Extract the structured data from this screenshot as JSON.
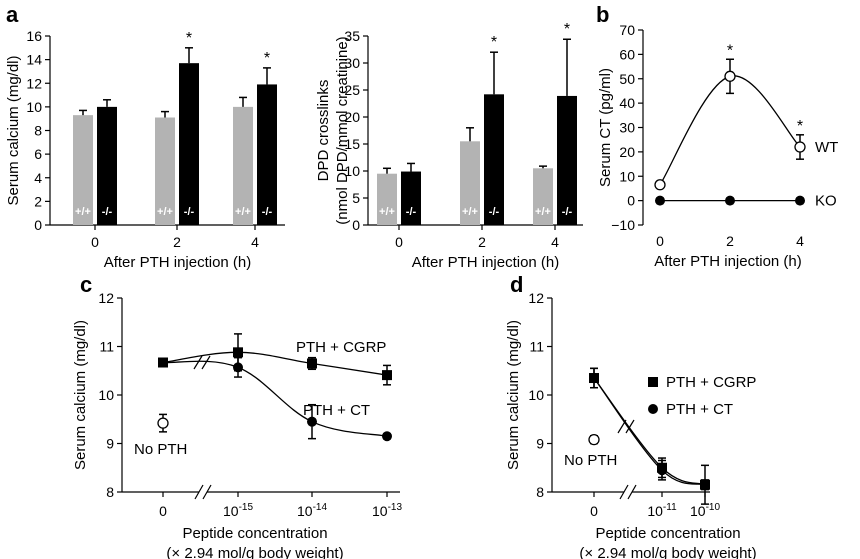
{
  "chart_data": [
    {
      "panel": "a",
      "type": "bar",
      "categories": [
        "0",
        "2",
        "4"
      ],
      "xlabel": "After PTH injection (h)",
      "ylabel": "Serum calcium (mg/dl)",
      "ylim": [
        0,
        16
      ],
      "yticks": [
        0,
        2,
        4,
        6,
        8,
        10,
        12,
        14,
        16
      ],
      "series": [
        {
          "name": "+/+",
          "label": "+/+",
          "color": "#b3b3b3",
          "values": [
            9.3,
            9.1,
            10.0
          ],
          "errors": [
            0.4,
            0.5,
            0.8
          ]
        },
        {
          "name": "-/-",
          "label": "-/-",
          "color": "#000000",
          "values": [
            10.0,
            13.7,
            11.9
          ],
          "errors": [
            0.6,
            1.3,
            1.4
          ]
        }
      ],
      "significance": [
        {
          "series": 1,
          "category": 1,
          "mark": "*"
        },
        {
          "series": 1,
          "category": 2,
          "mark": "*"
        }
      ]
    },
    {
      "panel": "a2",
      "type": "bar",
      "categories": [
        "0",
        "2",
        "4"
      ],
      "xlabel": "After PTH injection (h)",
      "ylabel_lines": [
        "DPD crosslinks",
        "(nmol DPD/mmol creatinine)"
      ],
      "ylim": [
        0,
        35
      ],
      "yticks": [
        0,
        5,
        10,
        15,
        20,
        25,
        30,
        35
      ],
      "series": [
        {
          "name": "+/+",
          "label": "+/+",
          "color": "#b3b3b3",
          "values": [
            9.5,
            15.5,
            10.5
          ],
          "errors": [
            1.0,
            2.5,
            0.4
          ]
        },
        {
          "name": "-/-",
          "label": "-/-",
          "color": "#000000",
          "values": [
            9.9,
            24.2,
            23.9
          ],
          "errors": [
            1.5,
            7.8,
            10.5
          ]
        }
      ],
      "significance": [
        {
          "series": 1,
          "category": 1,
          "mark": "*"
        },
        {
          "series": 1,
          "category": 2,
          "mark": "*"
        }
      ]
    },
    {
      "panel": "b",
      "type": "line",
      "x": [
        0,
        2,
        4
      ],
      "xticks": [
        "0",
        "2",
        "4"
      ],
      "xlabel": "After PTH injection (h)",
      "ylabel": "Serum CT (pg/ml)",
      "ylim": [
        -10,
        70
      ],
      "yticks": [
        -10,
        0,
        10,
        20,
        30,
        40,
        50,
        60,
        70
      ],
      "series": [
        {
          "name": "WT",
          "marker": "open-circle",
          "values": [
            6.5,
            51,
            22
          ],
          "errors": [
            0,
            7,
            5
          ]
        },
        {
          "name": "KO",
          "marker": "filled-circle",
          "values": [
            0,
            0,
            0
          ],
          "errors": [
            0,
            0,
            0
          ]
        }
      ],
      "significance": [
        {
          "series": 0,
          "index": 1,
          "mark": "*"
        },
        {
          "series": 0,
          "index": 2,
          "mark": "*"
        }
      ]
    },
    {
      "panel": "c",
      "type": "line",
      "xticks": [
        "0",
        "10-15",
        "10-14",
        "10-13"
      ],
      "xlabel_lines": [
        "Peptide concentration",
        "(× 2.94 mol/g body weight)"
      ],
      "ylabel": "Serum calcium (mg/dl)",
      "ylim": [
        8,
        12
      ],
      "yticks": [
        8,
        9,
        10,
        11,
        12
      ],
      "series": [
        {
          "name": "PTH + CGRP",
          "marker": "filled-square",
          "values": [
            10.67,
            10.88,
            10.65,
            10.41
          ],
          "errors": [
            0.08,
            0.38,
            0.12,
            0.2
          ]
        },
        {
          "name": "PTH + CT",
          "marker": "filled-circle",
          "values": [
            10.67,
            10.57,
            9.45,
            9.15
          ],
          "errors": [
            0.08,
            0.2,
            0.35,
            0.05
          ]
        },
        {
          "name": "No PTH",
          "marker": "open-circle",
          "values": [
            9.42
          ],
          "errors": [
            0.18
          ]
        }
      ]
    },
    {
      "panel": "d",
      "type": "line",
      "xticks": [
        "0",
        "10-11",
        "10-10"
      ],
      "xlabel_lines": [
        "Peptide concentration",
        "(× 2.94 mol/g body weight)"
      ],
      "ylabel": "Serum calcium (mg/dl)",
      "ylim": [
        8,
        12
      ],
      "yticks": [
        8,
        9,
        10,
        11,
        12
      ],
      "legend": [
        "PTH + CGRP",
        "PTH + CT"
      ],
      "series": [
        {
          "name": "PTH + CGRP",
          "marker": "filled-square",
          "values": [
            10.35,
            8.5,
            8.15
          ],
          "errors": [
            0.2,
            0.2,
            0.4
          ]
        },
        {
          "name": "PTH + CT",
          "marker": "filled-circle",
          "values": [
            10.35,
            8.45,
            8.15
          ],
          "errors": [
            0.2,
            0.2,
            0.1
          ]
        },
        {
          "name": "No PTH",
          "marker": "open-circle",
          "values": [
            9.08
          ],
          "errors": [
            0.08
          ]
        }
      ]
    }
  ],
  "panel_letters": {
    "a": "a",
    "b": "b",
    "c": "c",
    "d": "d"
  }
}
